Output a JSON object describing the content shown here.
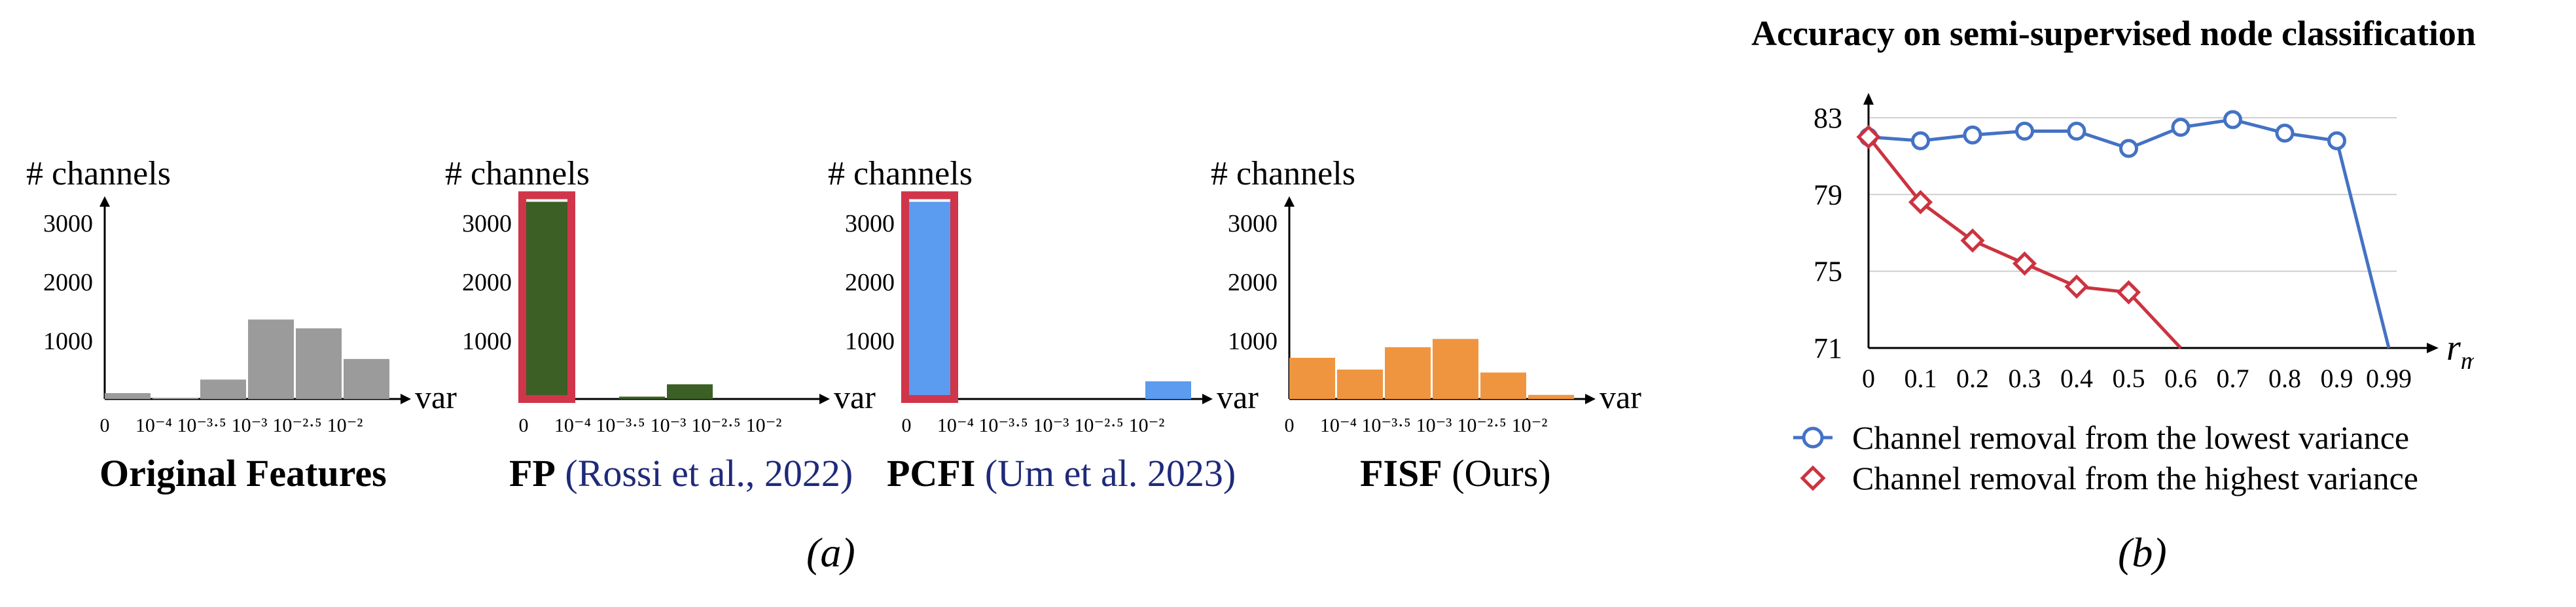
{
  "chart_data": [
    {
      "type": "bar",
      "panel": "a",
      "ylabel": "# channels",
      "xlabel": "var",
      "x_ticks": [
        "0",
        "10⁻⁴",
        "10⁻³·⁵",
        "10⁻³",
        "10⁻²·⁵",
        "10⁻²"
      ],
      "y_ticks": [
        1000,
        2000,
        3000
      ],
      "ylim": [
        0,
        3500
      ],
      "caption_bold": "Original Features",
      "caption_cite": "",
      "caption_plain": "",
      "color": "#9b9b9b",
      "values": [
        100,
        20,
        330,
        1350,
        1200,
        680
      ],
      "highlight_first": false
    },
    {
      "type": "bar",
      "panel": "a",
      "ylabel": "# channels",
      "xlabel": "var",
      "x_ticks": [
        "0",
        "10⁻⁴",
        "10⁻³·⁵",
        "10⁻³",
        "10⁻²·⁵",
        "10⁻²"
      ],
      "y_ticks": [
        1000,
        2000,
        3000
      ],
      "ylim": [
        0,
        3500
      ],
      "caption_bold": "FP",
      "caption_cite": "(Rossi et al., 2022)",
      "caption_plain": "",
      "color": "#3b5f25",
      "values": [
        3350,
        0,
        40,
        250,
        0,
        0
      ],
      "highlight_first": true
    },
    {
      "type": "bar",
      "panel": "a",
      "ylabel": "# channels",
      "xlabel": "var",
      "x_ticks": [
        "0",
        "10⁻⁴",
        "10⁻³·⁵",
        "10⁻³",
        "10⁻²·⁵",
        "10⁻²"
      ],
      "y_ticks": [
        1000,
        2000,
        3000
      ],
      "ylim": [
        0,
        3500
      ],
      "caption_bold": "PCFI",
      "caption_cite": "(Um et al. 2023)",
      "caption_plain": "",
      "color": "#5b9bf0",
      "values": [
        3350,
        0,
        0,
        0,
        0,
        300
      ],
      "highlight_first": true
    },
    {
      "type": "bar",
      "panel": "a",
      "ylabel": "# channels",
      "xlabel": "var",
      "x_ticks": [
        "0",
        "10⁻⁴",
        "10⁻³·⁵",
        "10⁻³",
        "10⁻²·⁵",
        "10⁻²"
      ],
      "y_ticks": [
        1000,
        2000,
        3000
      ],
      "ylim": [
        0,
        3500
      ],
      "caption_bold": "FISF",
      "caption_cite": "",
      "caption_plain": "(Ours)",
      "color": "#f0953f",
      "values": [
        700,
        500,
        880,
        1020,
        450,
        70
      ],
      "highlight_first": false
    },
    {
      "type": "line",
      "panel": "b",
      "title": "Accuracy on semi-supervised node classification",
      "xlabel": "r",
      "xlabel_sub": "m",
      "x": [
        "0",
        "0.1",
        "0.2",
        "0.3",
        "0.4",
        "0.5",
        "0.6",
        "0.7",
        "0.8",
        "0.9",
        "0.99"
      ],
      "y_ticks": [
        71,
        75,
        79,
        83
      ],
      "ylim": [
        71,
        83.5
      ],
      "series": [
        {
          "name": "Channel removal from the lowest variance",
          "color": "#4472c4",
          "marker": "circle",
          "values": [
            82.0,
            81.8,
            82.1,
            82.3,
            82.3,
            81.4,
            82.5,
            82.9,
            82.2,
            81.8,
            71.0
          ],
          "markers_on": [
            0,
            1,
            2,
            3,
            4,
            5,
            6,
            7,
            8,
            9
          ]
        },
        {
          "name": "Channel removal from the highest variance",
          "color": "#cc3340",
          "marker": "diamond",
          "values": [
            82.0,
            78.6,
            76.6,
            75.4,
            74.2,
            73.9,
            71.0,
            null,
            null,
            null,
            null
          ],
          "markers_on": [
            0,
            1,
            2,
            3,
            4,
            5
          ]
        }
      ]
    }
  ],
  "panel_labels": [
    "(a)",
    "(b)"
  ]
}
